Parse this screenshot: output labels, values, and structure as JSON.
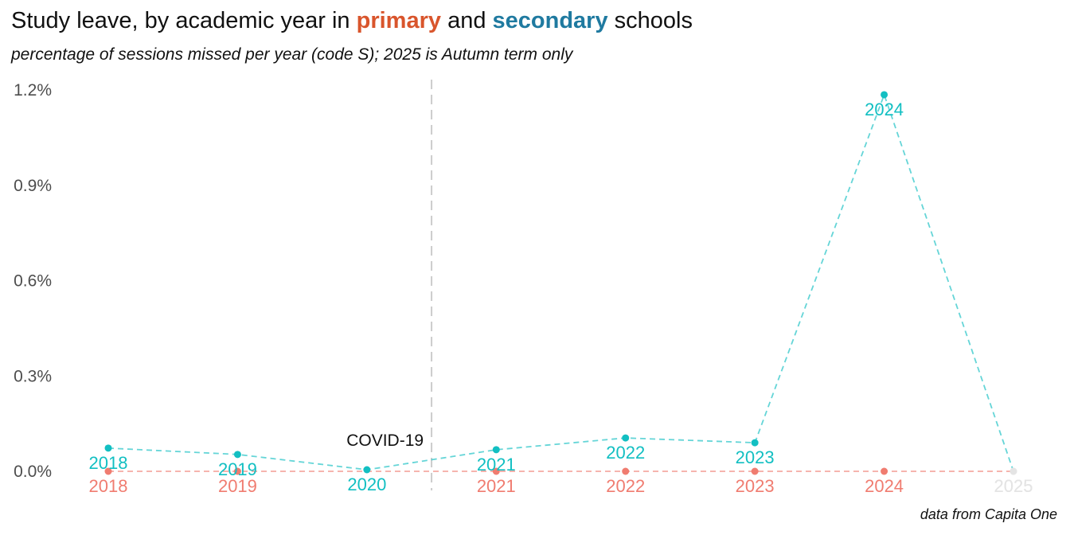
{
  "title": {
    "prefix": "Study leave, by academic year in ",
    "primary": "primary",
    "middle": " and ",
    "secondary": "secondary",
    "suffix": " schools"
  },
  "subtitle": "percentage of sessions missed per year (code S); 2025 is Autumn term only",
  "caption": "data from Capita One",
  "colors": {
    "primary_title": "#d9552c",
    "secondary_title": "#1f7aa0",
    "primary_series": "#f07c70",
    "secondary_series": "#12bfc2",
    "faded": "#e4e4e4",
    "covid_line": "#cccccc"
  },
  "chart_data": {
    "type": "line",
    "x": [
      2018,
      2019,
      2020,
      2021,
      2022,
      2023,
      2024,
      2025
    ],
    "series": [
      {
        "name": "primary",
        "values": [
          0.0,
          0.0,
          null,
          0.0,
          0.0,
          0.0,
          0.0,
          0.0
        ],
        "labels": [
          "2018",
          "2019",
          "",
          "2021",
          "2022",
          "2023",
          "2024",
          "2025"
        ]
      },
      {
        "name": "secondary",
        "values": [
          0.073,
          0.053,
          0.005,
          0.068,
          0.105,
          0.09,
          1.185,
          0.0
        ],
        "labels": [
          "2018",
          "2019",
          "2020",
          "2021",
          "2022",
          "2023",
          "2024",
          "2025"
        ]
      }
    ],
    "faded_x": [
      2025
    ],
    "y_ticks": [
      "0.0%",
      "0.3%",
      "0.6%",
      "0.9%",
      "1.2%"
    ],
    "y_tick_values": [
      0.0,
      0.3,
      0.6,
      0.9,
      1.2
    ],
    "ylim": [
      0,
      1.2
    ],
    "annotation": {
      "text": "COVID-19",
      "x_between": [
        2020,
        2021
      ]
    },
    "grid": false,
    "xlabel": "",
    "ylabel": ""
  }
}
